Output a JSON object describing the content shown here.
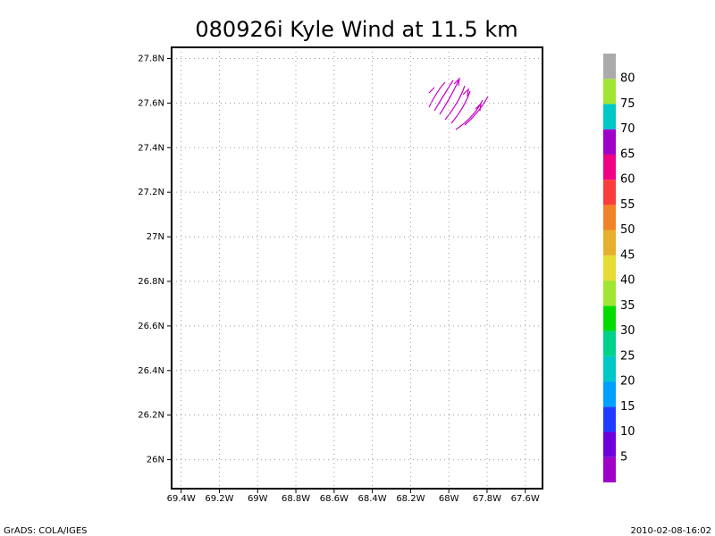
{
  "chart_data": {
    "type": "streamline",
    "title": "080926i Kyle Wind at 11.5 km",
    "xlim": [
      -69.45,
      -67.51
    ],
    "ylim": [
      25.87,
      27.85
    ],
    "xticks": [
      {
        "value": -69.4,
        "label": "69.4W"
      },
      {
        "value": -69.2,
        "label": "69.2W"
      },
      {
        "value": -69.0,
        "label": "69W"
      },
      {
        "value": -68.8,
        "label": "68.8W"
      },
      {
        "value": -68.6,
        "label": "68.6W"
      },
      {
        "value": -68.4,
        "label": "68.4W"
      },
      {
        "value": -68.2,
        "label": "68.2W"
      },
      {
        "value": -68.0,
        "label": "68W"
      },
      {
        "value": -67.8,
        "label": "67.8W"
      },
      {
        "value": -67.6,
        "label": "67.6W"
      }
    ],
    "yticks": [
      {
        "value": 26.0,
        "label": "26N"
      },
      {
        "value": 26.2,
        "label": "26.2N"
      },
      {
        "value": 26.4,
        "label": "26.4N"
      },
      {
        "value": 26.6,
        "label": "26.6N"
      },
      {
        "value": 26.8,
        "label": "26.8N"
      },
      {
        "value": 27.0,
        "label": "27N"
      },
      {
        "value": 27.2,
        "label": "27.2N"
      },
      {
        "value": 27.4,
        "label": "27.4N"
      },
      {
        "value": 27.6,
        "label": "27.6N"
      },
      {
        "value": 27.8,
        "label": "27.8N"
      }
    ],
    "grid": true,
    "color": "#c800c8",
    "colorbar": {
      "levels": [
        5,
        10,
        15,
        20,
        25,
        30,
        35,
        40,
        45,
        50,
        55,
        60,
        65,
        70,
        75,
        80
      ],
      "colors": [
        "#a000c8",
        "#6e00dc",
        "#1e3cff",
        "#00a0ff",
        "#00c8c8",
        "#00d28c",
        "#00dc00",
        "#a0e632",
        "#e6dc32",
        "#e6af2d",
        "#f08228",
        "#fa3c3c",
        "#f00082",
        "#a000c8",
        "#00c8c8",
        "#a0e632",
        "#aaaaaa"
      ]
    },
    "footer_left": "GrADS: COLA/IGES",
    "footer_right": "2010-02-08-16:02"
  }
}
